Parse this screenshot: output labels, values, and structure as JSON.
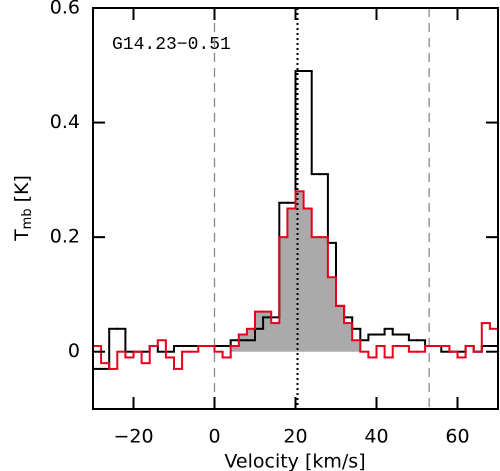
{
  "chart_data": {
    "type": "step",
    "annotation": "G14.23−0.51",
    "xlabel": "Velocity [km/s]",
    "ylabel": {
      "main": "T",
      "sub": "mb",
      "unit": " [K]"
    },
    "xlim": [
      -30,
      70
    ],
    "ylim": [
      -0.1,
      0.6
    ],
    "xticks": [
      {
        "value": -20,
        "label": "−20"
      },
      0,
      20,
      40,
      60
    ],
    "yticks": [
      0,
      0.2,
      0.4,
      0.6
    ],
    "x": [
      -29,
      -27,
      -25,
      -23,
      -21,
      -19,
      -17,
      -15,
      -13,
      -11,
      -9,
      -7,
      -5,
      -3,
      -1,
      1,
      3,
      5,
      7,
      9,
      11,
      13,
      15,
      17,
      19,
      21,
      23,
      25,
      27,
      29,
      31,
      33,
      35,
      37,
      39,
      41,
      43,
      45,
      47,
      49,
      51,
      53,
      55,
      57,
      59,
      61,
      63,
      65,
      67,
      69
    ],
    "series": [
      {
        "color": "#000000",
        "values": [
          -0.03,
          -0.03,
          0.04,
          0.04,
          0.0,
          0.0,
          0.0,
          0.01,
          0.0,
          0.0,
          0.01,
          0.01,
          0.01,
          0.01,
          0.01,
          0.01,
          0.01,
          0.02,
          0.02,
          0.02,
          0.04,
          0.06,
          0.06,
          0.26,
          0.26,
          0.49,
          0.49,
          0.31,
          0.31,
          0.19,
          0.08,
          0.06,
          0.04,
          0.02,
          0.03,
          0.03,
          0.04,
          0.03,
          0.03,
          0.02,
          0.02,
          0.01,
          0.01,
          0.0,
          0.0,
          0.0,
          0.01,
          0.0,
          0.01,
          0.01
        ]
      },
      {
        "color": "#e8001c",
        "values": [
          0.01,
          -0.02,
          -0.03,
          0.0,
          -0.01,
          0.0,
          -0.02,
          0.01,
          0.02,
          -0.01,
          -0.03,
          0.0,
          0.0,
          0.01,
          0.01,
          0.0,
          -0.01,
          0.01,
          0.03,
          0.04,
          0.07,
          0.07,
          0.05,
          0.2,
          0.25,
          0.28,
          0.25,
          0.2,
          0.2,
          0.13,
          0.08,
          0.05,
          0.02,
          0.0,
          -0.01,
          0.01,
          -0.01,
          0.01,
          0.01,
          0.0,
          0.0,
          0.01,
          0.01,
          0.01,
          0.0,
          -0.01,
          0.01,
          0.0,
          0.05,
          0.04
        ]
      }
    ],
    "shade": {
      "series": 1,
      "range": [
        4,
        38
      ],
      "color": "#aaaaaa"
    },
    "vlines": [
      {
        "x": 0,
        "style": "dashed",
        "color": "#888888"
      },
      {
        "x": 53,
        "style": "dashed",
        "color": "#888888"
      },
      {
        "x": 20.5,
        "style": "dotted",
        "color": "#000000"
      }
    ]
  }
}
